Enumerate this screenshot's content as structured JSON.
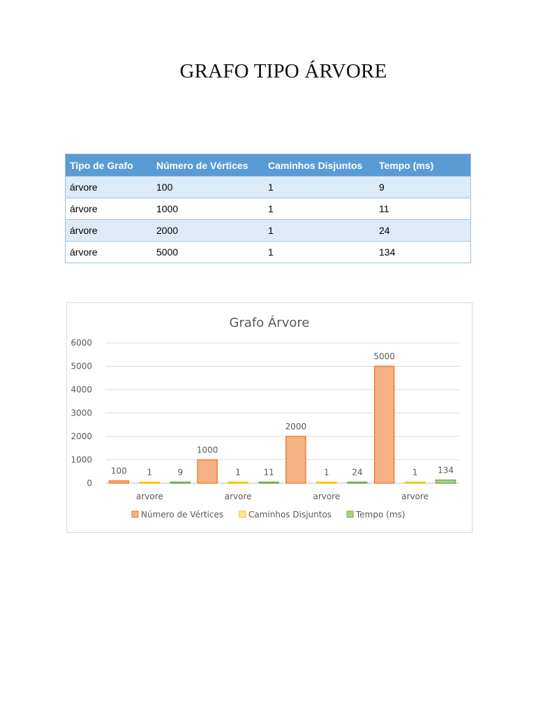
{
  "document": {
    "title": "GRAFO TIPO ÁRVORE"
  },
  "table": {
    "headers": [
      "Tipo de Grafo",
      "Número de Vértices",
      "Caminhos Disjuntos",
      "Tempo (ms)"
    ],
    "rows": [
      [
        "árvore",
        "100",
        "1",
        "9"
      ],
      [
        "árvore",
        "1000",
        "1",
        "11"
      ],
      [
        "árvore",
        "2000",
        "1",
        "24"
      ],
      [
        "árvore",
        "5000",
        "1",
        "134"
      ]
    ]
  },
  "colors": {
    "header_fill": "#5b9bd5",
    "band_fill": "#ddebf7",
    "series_vertices": "#f4b183",
    "series_vertices_border": "#ed7d31",
    "series_caminhos": "#ffe699",
    "series_caminhos_border": "#ffc000",
    "series_tempo": "#a9d18e",
    "series_tempo_border": "#70ad47"
  },
  "chart_data": {
    "type": "bar",
    "title": "Grafo Árvore",
    "categories": [
      "arvore",
      "arvore",
      "arvore",
      "arvore"
    ],
    "series": [
      {
        "name": "Número de Vértices",
        "values": [
          100,
          1000,
          2000,
          5000
        ]
      },
      {
        "name": "Caminhos Disjuntos",
        "values": [
          1,
          1,
          1,
          1
        ]
      },
      {
        "name": "Tempo (ms)",
        "values": [
          9,
          11,
          24,
          134
        ]
      }
    ],
    "ylim": [
      0,
      6000
    ],
    "yticks": [
      0,
      1000,
      2000,
      3000,
      4000,
      5000,
      6000
    ],
    "grid": true,
    "legend_position": "bottom",
    "data_labels": true
  }
}
